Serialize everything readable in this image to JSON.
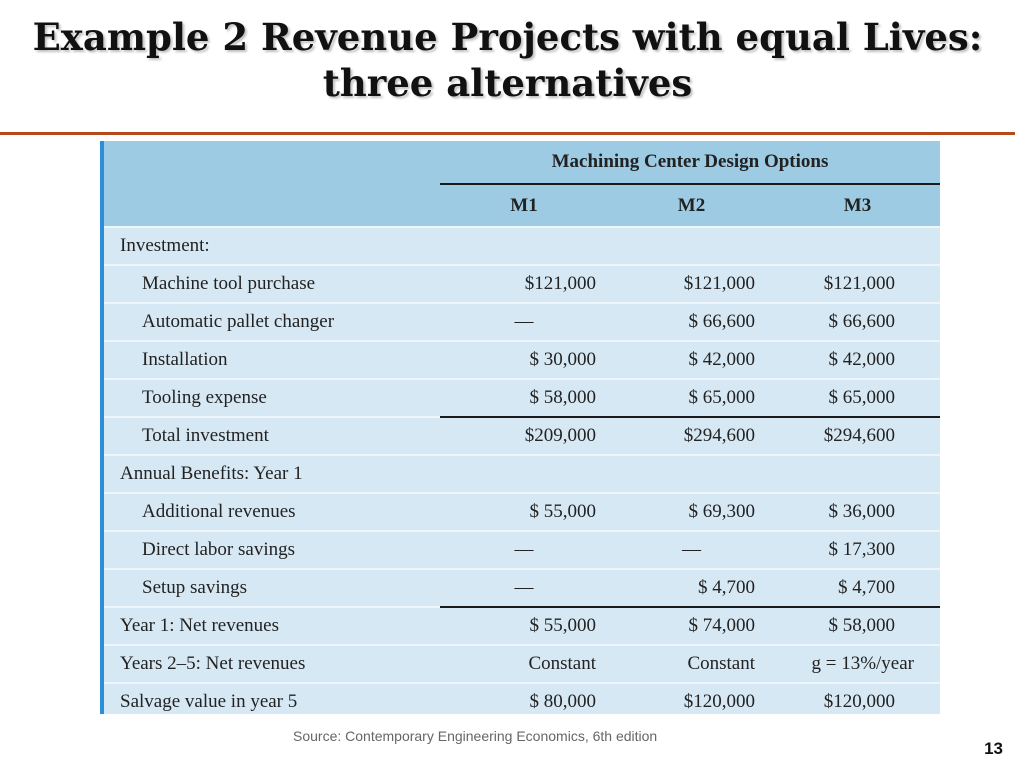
{
  "title": {
    "line1": "Example 2 Revenue Projects with equal Lives:",
    "line2": "three alternatives"
  },
  "table": {
    "group_header": "Machining Center Design Options",
    "columns": [
      "M1",
      "M2",
      "M3"
    ],
    "rows": [
      {
        "label": "Investment:",
        "values": [
          "",
          "",
          ""
        ]
      },
      {
        "label": "Machine tool purchase",
        "values": [
          "$121,000",
          "$121,000",
          "$121,000"
        ]
      },
      {
        "label": "Automatic pallet changer",
        "values": [
          "—",
          "$ 66,600",
          "$ 66,600"
        ]
      },
      {
        "label": "Installation",
        "values": [
          "$ 30,000",
          "$ 42,000",
          "$ 42,000"
        ]
      },
      {
        "label": "Tooling expense",
        "values": [
          "$ 58,000",
          "$ 65,000",
          "$ 65,000"
        ]
      },
      {
        "label": "Total investment",
        "values": [
          "$209,000",
          "$294,600",
          "$294,600"
        ]
      },
      {
        "label": "Annual Benefits: Year 1",
        "values": [
          "",
          "",
          ""
        ]
      },
      {
        "label": "Additional revenues",
        "values": [
          "$ 55,000",
          "$ 69,300",
          "$ 36,000"
        ]
      },
      {
        "label": "Direct labor savings",
        "values": [
          "—",
          "—",
          "$ 17,300"
        ]
      },
      {
        "label": "Setup savings",
        "values": [
          "—",
          "$ 4,700",
          "$ 4,700"
        ]
      },
      {
        "label": "Year 1: Net revenues",
        "values": [
          "$ 55,000",
          "$ 74,000",
          "$ 58,000"
        ]
      },
      {
        "label": "Years 2–5: Net revenues",
        "values": [
          "Constant",
          "Constant",
          "g = 13%/year"
        ]
      },
      {
        "label": "Salvage value in year 5",
        "values": [
          "$ 80,000",
          "$120,000",
          "$120,000"
        ]
      }
    ]
  },
  "source": "Source: Contemporary Engineering Economics, 6th edition",
  "page_number": "13",
  "colors": {
    "header_bg": "#9ccbe3",
    "body_bg": "#d6e8f3",
    "accent_left_bar": "#2a8fd6",
    "title_rule": "#b54a1a"
  }
}
